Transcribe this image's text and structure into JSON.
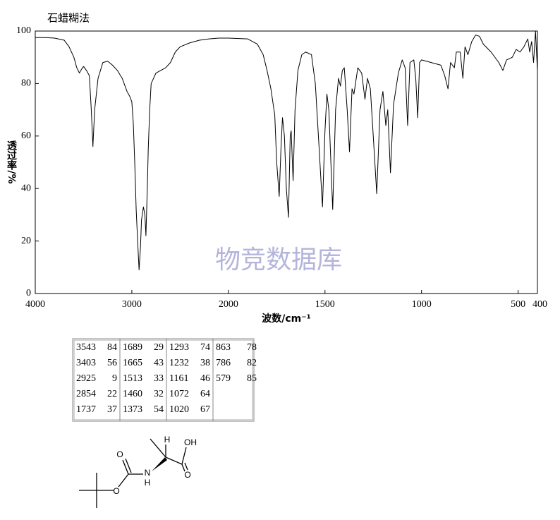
{
  "chart_data": {
    "type": "line",
    "title": "石蜡糊法",
    "xlabel": "波数/cm⁻¹",
    "ylabel": "透过率/%",
    "watermark": "物竞数据库",
    "xlim": [
      4000,
      400
    ],
    "xscale_change_at": 2000,
    "xticks": [
      4000,
      3000,
      2000,
      1500,
      1000,
      500,
      400
    ],
    "ylim": [
      0,
      100
    ],
    "yticks": [
      0,
      20,
      40,
      60,
      80,
      100
    ],
    "grid": false,
    "x": [
      4000,
      3900,
      3800,
      3700,
      3650,
      3600,
      3570,
      3543,
      3520,
      3500,
      3470,
      3440,
      3420,
      3403,
      3385,
      3350,
      3300,
      3250,
      3200,
      3150,
      3100,
      3050,
      3020,
      3000,
      2985,
      2970,
      2955,
      2940,
      2925,
      2910,
      2900,
      2880,
      2865,
      2854,
      2840,
      2830,
      2815,
      2800,
      2750,
      2700,
      2650,
      2600,
      2550,
      2500,
      2400,
      2300,
      2200,
      2100,
      2000,
      1900,
      1850,
      1820,
      1800,
      1780,
      1760,
      1750,
      1737,
      1728,
      1720,
      1710,
      1700,
      1689,
      1680,
      1675,
      1665,
      1655,
      1640,
      1620,
      1600,
      1570,
      1550,
      1530,
      1513,
      1500,
      1490,
      1480,
      1460,
      1445,
      1430,
      1420,
      1410,
      1400,
      1385,
      1373,
      1360,
      1350,
      1330,
      1310,
      1293,
      1280,
      1265,
      1250,
      1232,
      1215,
      1200,
      1185,
      1175,
      1161,
      1145,
      1120,
      1100,
      1085,
      1072,
      1060,
      1040,
      1030,
      1020,
      1010,
      1000,
      950,
      900,
      880,
      863,
      850,
      830,
      820,
      800,
      786,
      775,
      760,
      740,
      720,
      700,
      680,
      640,
      600,
      579,
      560,
      530,
      510,
      490,
      470,
      450,
      440,
      430,
      420,
      410,
      400
    ],
    "series": [
      {
        "name": "spectrum",
        "color": "#000000",
        "values": [
          97.5,
          97.5,
          97.3,
          96.5,
          94,
          90,
          86,
          84,
          85.5,
          86.5,
          85,
          83,
          70,
          56,
          70,
          82,
          88,
          88.5,
          87,
          85,
          82,
          77,
          75,
          73,
          65,
          50,
          32,
          20,
          9,
          18,
          28,
          33,
          30,
          22,
          40,
          55,
          70,
          80,
          84,
          85,
          86,
          88,
          92,
          94,
          95.5,
          96.5,
          97,
          97.3,
          97.3,
          97,
          95,
          91,
          85,
          78,
          68,
          50,
          37,
          55,
          67,
          60,
          40,
          29,
          60,
          62,
          43,
          70,
          85,
          91,
          92,
          91,
          80,
          55,
          33,
          62,
          76,
          70,
          32,
          70,
          82,
          79,
          85,
          86,
          70,
          54,
          78,
          76,
          86,
          84,
          74,
          82,
          78,
          60,
          38,
          70,
          77,
          64,
          70,
          46,
          72,
          84,
          89,
          86,
          64,
          88,
          89,
          82,
          67,
          88,
          89,
          88,
          87,
          83,
          78,
          88,
          86,
          92,
          92,
          82,
          94,
          91,
          96,
          98.5,
          98,
          95,
          92,
          88,
          85,
          89,
          90,
          93,
          92,
          94,
          97,
          92,
          96,
          88,
          100,
          85
        ]
      }
    ]
  },
  "peak_table": [
    [
      [
        3543,
        84
      ],
      [
        3403,
        56
      ],
      [
        2925,
        9
      ],
      [
        2854,
        22
      ],
      [
        1737,
        37
      ]
    ],
    [
      [
        1689,
        29
      ],
      [
        1665,
        43
      ],
      [
        1513,
        33
      ],
      [
        1460,
        32
      ],
      [
        1373,
        54
      ]
    ],
    [
      [
        1293,
        74
      ],
      [
        1232,
        38
      ],
      [
        1161,
        46
      ],
      [
        1072,
        64
      ],
      [
        1020,
        67
      ]
    ],
    [
      [
        863,
        78
      ],
      [
        786,
        82
      ],
      [
        579,
        85
      ]
    ]
  ],
  "structure": {
    "labels": [
      "H",
      "OH",
      "O",
      "N",
      "H",
      "O"
    ]
  }
}
